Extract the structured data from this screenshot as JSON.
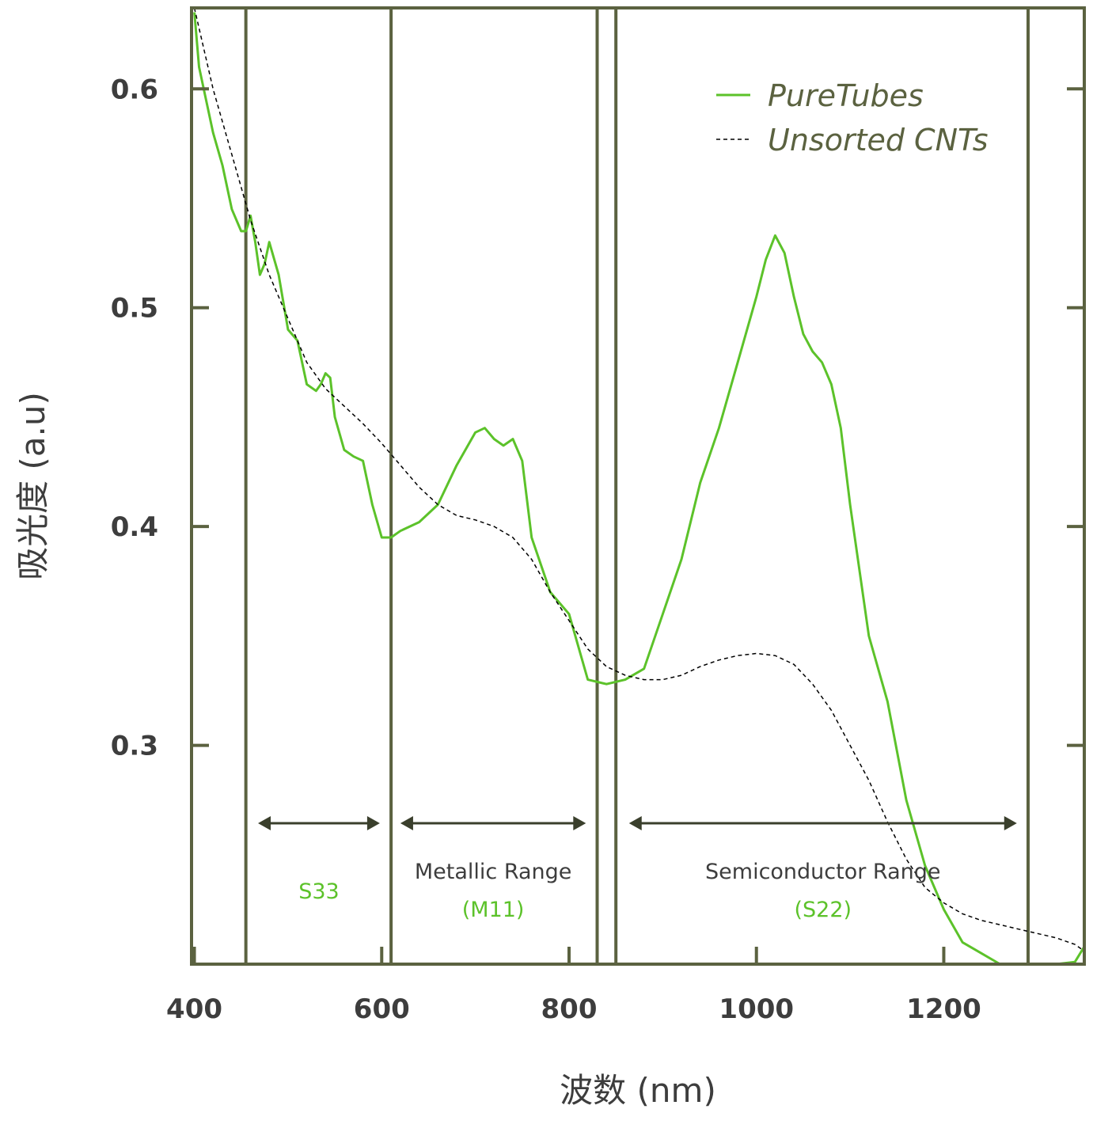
{
  "chart_data": {
    "type": "line",
    "xlabel": "波数 (nm)",
    "ylabel": "吸光度 (a.u)",
    "xlim": [
      397,
      1350
    ],
    "ylim": [
      0.2,
      0.637
    ],
    "x_ticks": [
      400,
      600,
      800,
      1000,
      1200
    ],
    "x_tick_labels": [
      "400",
      "600",
      "800",
      "1000",
      "1200"
    ],
    "y_ticks": [
      0.3,
      0.4,
      0.5,
      0.6
    ],
    "y_tick_labels": [
      "0.3",
      "0.4",
      "0.5",
      "0.6"
    ],
    "grid": false,
    "legend_position": "top-right",
    "colors": {
      "frame": "#5b6240",
      "puretubes": "#5cc22a",
      "unsorted": "#000000",
      "arrow": "#3a3f2c"
    },
    "series": [
      {
        "name": "PureTubes",
        "style": "solid",
        "x": [
          400,
          405,
          410,
          420,
          430,
          440,
          450,
          455,
          460,
          465,
          470,
          475,
          480,
          490,
          500,
          510,
          520,
          530,
          535,
          540,
          545,
          550,
          560,
          570,
          580,
          590,
          600,
          610,
          620,
          640,
          660,
          680,
          700,
          710,
          720,
          730,
          740,
          750,
          760,
          780,
          800,
          820,
          840,
          860,
          880,
          900,
          920,
          940,
          960,
          980,
          1000,
          1010,
          1020,
          1030,
          1040,
          1050,
          1060,
          1070,
          1080,
          1090,
          1100,
          1120,
          1140,
          1160,
          1180,
          1200,
          1220,
          1240,
          1260,
          1280,
          1300,
          1320,
          1340,
          1350
        ],
        "y": [
          0.635,
          0.61,
          0.6,
          0.58,
          0.565,
          0.545,
          0.535,
          0.535,
          0.542,
          0.53,
          0.515,
          0.52,
          0.53,
          0.515,
          0.49,
          0.485,
          0.465,
          0.462,
          0.465,
          0.47,
          0.468,
          0.45,
          0.435,
          0.432,
          0.43,
          0.41,
          0.395,
          0.395,
          0.398,
          0.402,
          0.41,
          0.428,
          0.443,
          0.445,
          0.44,
          0.437,
          0.44,
          0.43,
          0.395,
          0.37,
          0.36,
          0.33,
          0.328,
          0.33,
          0.335,
          0.36,
          0.385,
          0.42,
          0.445,
          0.475,
          0.505,
          0.522,
          0.533,
          0.525,
          0.505,
          0.488,
          0.48,
          0.475,
          0.465,
          0.445,
          0.41,
          0.35,
          0.32,
          0.275,
          0.245,
          0.225,
          0.21,
          0.205,
          0.2,
          0.2,
          0.2,
          0.2,
          0.201,
          0.208
        ]
      },
      {
        "name": "Unsorted CNTs",
        "style": "dashed",
        "x": [
          400,
          420,
          440,
          460,
          480,
          500,
          520,
          540,
          560,
          580,
          600,
          620,
          640,
          660,
          680,
          700,
          720,
          740,
          760,
          780,
          800,
          820,
          840,
          860,
          880,
          900,
          920,
          940,
          960,
          980,
          1000,
          1020,
          1040,
          1060,
          1080,
          1100,
          1120,
          1140,
          1160,
          1180,
          1200,
          1220,
          1240,
          1260,
          1280,
          1300,
          1320,
          1340,
          1350
        ],
        "y": [
          0.637,
          0.6,
          0.57,
          0.54,
          0.515,
          0.495,
          0.475,
          0.463,
          0.455,
          0.447,
          0.438,
          0.428,
          0.418,
          0.41,
          0.405,
          0.403,
          0.4,
          0.395,
          0.385,
          0.37,
          0.357,
          0.344,
          0.336,
          0.332,
          0.33,
          0.33,
          0.332,
          0.336,
          0.339,
          0.341,
          0.342,
          0.341,
          0.337,
          0.328,
          0.316,
          0.3,
          0.284,
          0.265,
          0.248,
          0.235,
          0.228,
          0.223,
          0.22,
          0.218,
          0.216,
          0.214,
          0.212,
          0.209,
          0.206
        ]
      }
    ],
    "vertical_lines": [
      455,
      610,
      830,
      850,
      1290
    ],
    "ranges": [
      {
        "from": 468,
        "to": 598,
        "label": "",
        "sub_label": "S33"
      },
      {
        "from": 620,
        "to": 818,
        "label": "Metallic Range",
        "sub_label": "(M11)"
      },
      {
        "from": 864,
        "to": 1278,
        "label": "Semiconductor Range",
        "sub_label": "(S22)"
      }
    ]
  }
}
